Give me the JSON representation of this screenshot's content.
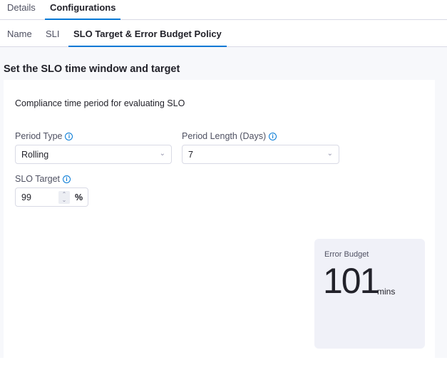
{
  "top_tabs": [
    {
      "label": "Details",
      "active": false
    },
    {
      "label": "Configurations",
      "active": true
    }
  ],
  "sub_tabs": [
    {
      "label": "Name",
      "active": false
    },
    {
      "label": "SLI",
      "active": false
    },
    {
      "label": "SLO Target & Error Budget Policy",
      "active": true
    }
  ],
  "section_title": "Set the SLO time window and target",
  "card": {
    "subtitle": "Compliance time period for evaluating SLO",
    "period_type": {
      "label": "Period Type",
      "value": "Rolling"
    },
    "period_length": {
      "label": "Period Length (Days)",
      "value": "7"
    },
    "slo_target": {
      "label": "SLO Target",
      "value": "99",
      "unit": "%"
    },
    "error_budget": {
      "label": "Error Budget",
      "value": "101",
      "unit": "mins"
    }
  },
  "colors": {
    "accent": "#0278d5",
    "panel": "#f0f1f8"
  }
}
